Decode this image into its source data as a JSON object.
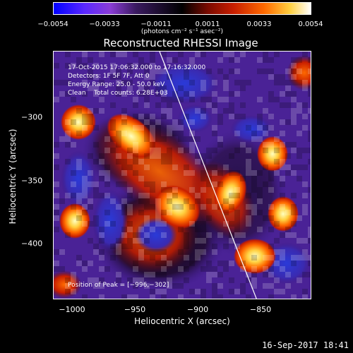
{
  "colorbar": {
    "ticks": [
      "−0.0054",
      "−0.0033",
      "−0.0011",
      "0.0011",
      "0.0033",
      "0.0054"
    ],
    "unit_label": "(photons cm⁻² s⁻¹ asec⁻²)"
  },
  "title": "Reconstructed RHESSI Image",
  "info": {
    "time_range": "17-Oct-2015 17:06:32.000 to 17:16:32.000",
    "detectors": "Detectors: 1F 5F 7F, Att 0",
    "energy": "Energy Range: 25.0 - 50.0 keV",
    "clean": "Clean    Total counts: 6.28E+03",
    "peak": "Position of Peak = [−996,−302]"
  },
  "axes": {
    "ylabel": "Heliocentric Y (arcsec)",
    "xlabel": "Heliocentric X (arcsec)",
    "yticks": [
      "−300",
      "−350",
      "−400"
    ],
    "xticks": [
      "−1000",
      "−950",
      "−900",
      "−850"
    ]
  },
  "timestamp": "16-Sep-2017 18:41",
  "colors": {
    "bright": "#ffd040",
    "mid": "#ff6a00",
    "dark": "#c81e00",
    "background": "#3a1a8a",
    "negative": "#3030c8"
  }
}
